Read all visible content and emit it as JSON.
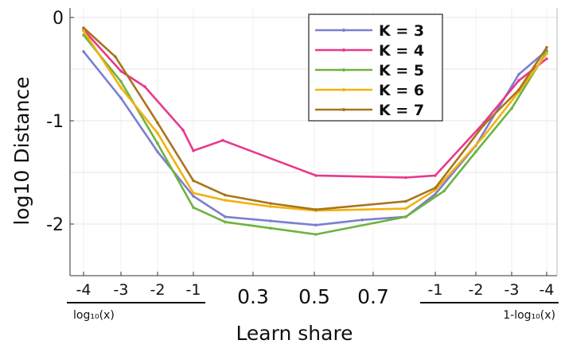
{
  "chart_data": {
    "type": "line",
    "title": "",
    "xlabel": "Learn share",
    "ylabel": "log10 Distance",
    "ylim": [
      -2.5,
      0
    ],
    "y_ticks": [
      "0",
      "-1",
      "-2"
    ],
    "y_tick_values": [
      0,
      -1,
      -2
    ],
    "x_tick_labels": [
      "-4",
      "-3",
      "-2",
      "-1",
      "0.3",
      "0.5",
      "0.7",
      "-1",
      "-2",
      "-3",
      "-4"
    ],
    "x_axis_sublabels": {
      "left": "log₁₀(x)",
      "right": "1-log₁₀(x)"
    },
    "grid": true,
    "legend_position": "top-right",
    "colors": {
      "K = 3": "#7b7fcf",
      "K = 4": "#e8388c",
      "K = 5": "#6db33f",
      "K = 6": "#f2b10f",
      "K = 7": "#a8741f"
    },
    "series": [
      {
        "name": "K = 3",
        "values": [
          -0.33,
          -0.78,
          -1.3,
          -1.73,
          -1.93,
          -1.97,
          -2.01,
          -1.96,
          -1.93,
          -1.71,
          -1.24,
          -0.55,
          -0.32
        ]
      },
      {
        "name": "K = 4",
        "values": [
          -0.12,
          -0.52,
          -0.67,
          -1.09,
          -1.29,
          -1.19,
          -1.53,
          -1.55,
          -1.53,
          -1.02,
          -0.61,
          -0.4
        ]
      },
      {
        "name": "K = 5",
        "values": [
          -0.17,
          -0.62,
          -1.22,
          -1.84,
          -1.98,
          -2.04,
          -2.1,
          -1.93,
          -1.68,
          -1.3,
          -0.88,
          -0.33
        ]
      },
      {
        "name": "K = 6",
        "values": [
          -0.13,
          -0.68,
          -1.12,
          -1.7,
          -1.77,
          -1.83,
          -1.87,
          -1.85,
          -1.67,
          -1.15,
          -0.72,
          -0.35
        ]
      },
      {
        "name": "K = 7",
        "values": [
          -0.1,
          -0.38,
          -1.02,
          -1.58,
          -1.72,
          -1.8,
          -1.86,
          -1.78,
          -1.65,
          -1.04,
          -0.7,
          -0.29
        ]
      }
    ]
  }
}
